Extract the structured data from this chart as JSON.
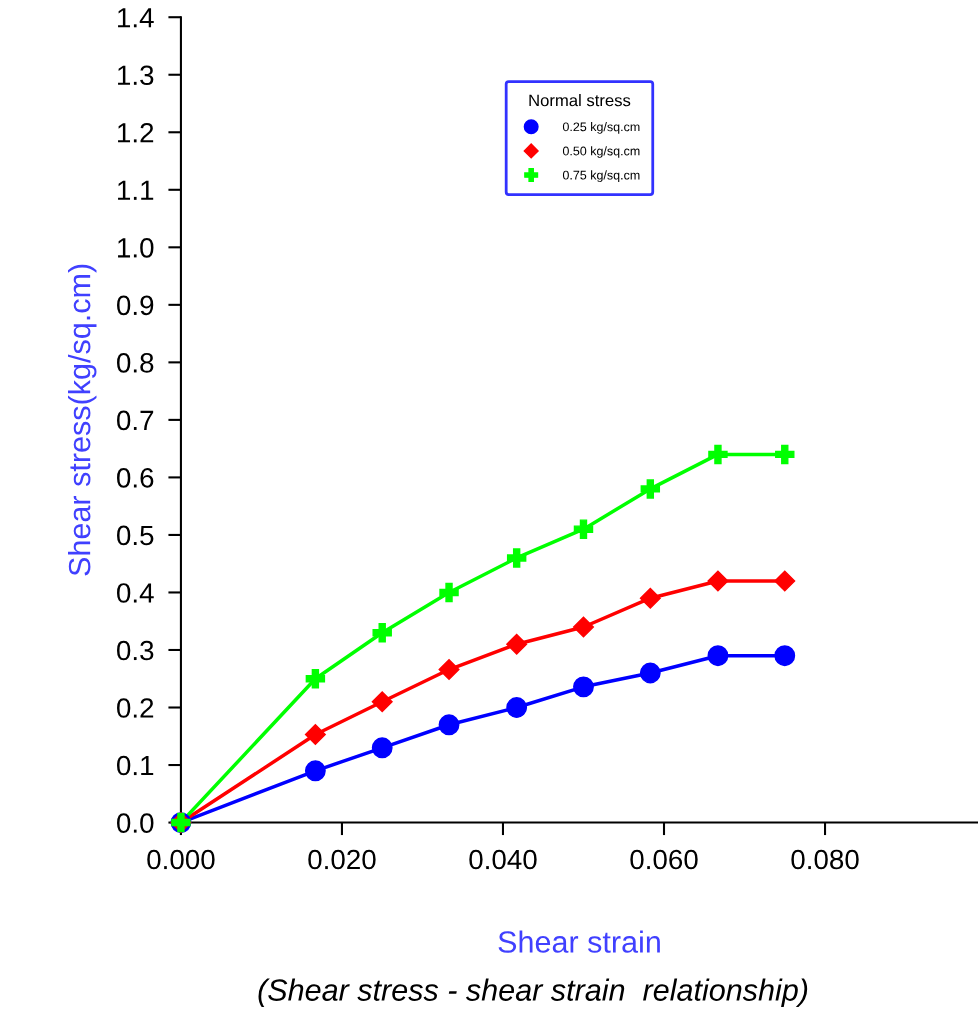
{
  "chart_data": {
    "type": "line",
    "xlabel": "Shear strain",
    "ylabel": "Shear stress(kg/sq.cm)",
    "legend_title": "Normal stress",
    "annotations": [
      "(Shear stress - shear strain  relationship)"
    ],
    "x": [
      0,
      0.0167,
      0.025,
      0.0333,
      0.0417,
      0.05,
      0.0583,
      0.0667,
      0.075
    ],
    "series": [
      {
        "name": "0.25 kg/sq.cm",
        "color": "#0000ff",
        "marker": "circle",
        "values": [
          0,
          0.09,
          0.13,
          0.17,
          0.2,
          0.236,
          0.26,
          0.29,
          0.29
        ]
      },
      {
        "name": "0.50 kg/sq.cm",
        "color": "#ff0000",
        "marker": "diamond",
        "values": [
          0,
          0.153,
          0.21,
          0.266,
          0.31,
          0.34,
          0.39,
          0.42,
          0.42
        ]
      },
      {
        "name": "0.75 kg/sq.cm",
        "color": "#00ff00",
        "marker": "cross",
        "values": [
          0,
          0.25,
          0.33,
          0.4,
          0.46,
          0.51,
          0.58,
          0.64,
          0.64
        ]
      }
    ],
    "xlim": [
      0,
      0.099
    ],
    "ylim": [
      0,
      1.4
    ],
    "xticks": [
      {
        "value": 0,
        "label": "0.000"
      },
      {
        "value": 0.02,
        "label": "0.020"
      },
      {
        "value": 0.04,
        "label": "0.040"
      },
      {
        "value": 0.06,
        "label": "0.060"
      },
      {
        "value": 0.08,
        "label": "0.080"
      }
    ],
    "yticks": [
      {
        "value": 0,
        "label": "0.0"
      },
      {
        "value": 0.1,
        "label": "0.1"
      },
      {
        "value": 0.2,
        "label": "0.2"
      },
      {
        "value": 0.3,
        "label": "0.3"
      },
      {
        "value": 0.4,
        "label": "0.4"
      },
      {
        "value": 0.5,
        "label": "0.5"
      },
      {
        "value": 0.6,
        "label": "0.6"
      },
      {
        "value": 0.7,
        "label": "0.7"
      },
      {
        "value": 0.8,
        "label": "0.8"
      },
      {
        "value": 0.9,
        "label": "0.9"
      },
      {
        "value": 1.0,
        "label": "1.0"
      },
      {
        "value": 1.1,
        "label": "1.1"
      },
      {
        "value": 1.2,
        "label": "1.2"
      },
      {
        "value": 1.3,
        "label": "1.3"
      },
      {
        "value": 1.4,
        "label": "1.4"
      }
    ],
    "grid": false,
    "legend": "top",
    "line_style": "solid"
  }
}
